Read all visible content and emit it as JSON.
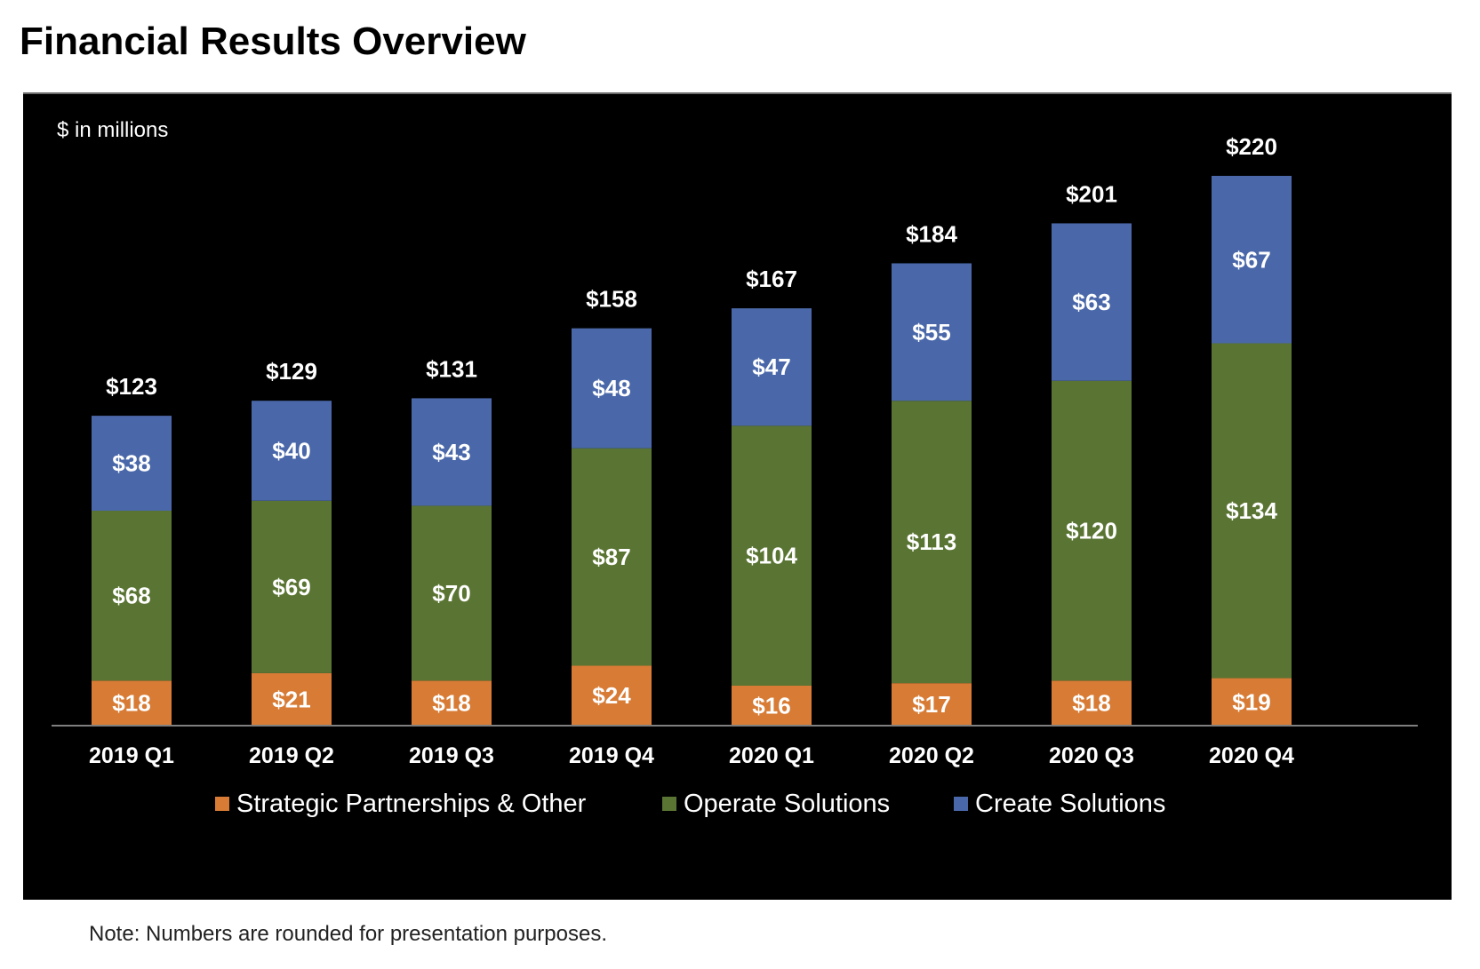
{
  "page": {
    "title": "Financial Results Overview",
    "note": "Note: Numbers are rounded for presentation purposes."
  },
  "chart_data": {
    "type": "bar",
    "stacked": true,
    "unit_label": "$ in millions",
    "categories": [
      "2019 Q1",
      "2019 Q2",
      "2019 Q3",
      "2019 Q4",
      "2020 Q1",
      "2020 Q2",
      "2020 Q3",
      "2020 Q4"
    ],
    "series": [
      {
        "name": "Strategic Partnerships & Other",
        "color": "#d77b35",
        "values": [
          18,
          21,
          18,
          24,
          16,
          17,
          18,
          19
        ]
      },
      {
        "name": "Operate Solutions",
        "color": "#5a7533",
        "values": [
          68,
          69,
          70,
          87,
          104,
          113,
          120,
          134
        ]
      },
      {
        "name": "Create Solutions",
        "color": "#4a68a9",
        "values": [
          38,
          40,
          43,
          48,
          47,
          55,
          63,
          67
        ]
      }
    ],
    "totals": [
      123,
      129,
      131,
      158,
      167,
      184,
      201,
      220
    ],
    "value_prefix": "$",
    "ylim": [
      0,
      220
    ],
    "legend_position": "bottom",
    "grid": false,
    "background": "#000000",
    "text_color": "#ffffff",
    "baseline_color": "#7f7f7f"
  }
}
